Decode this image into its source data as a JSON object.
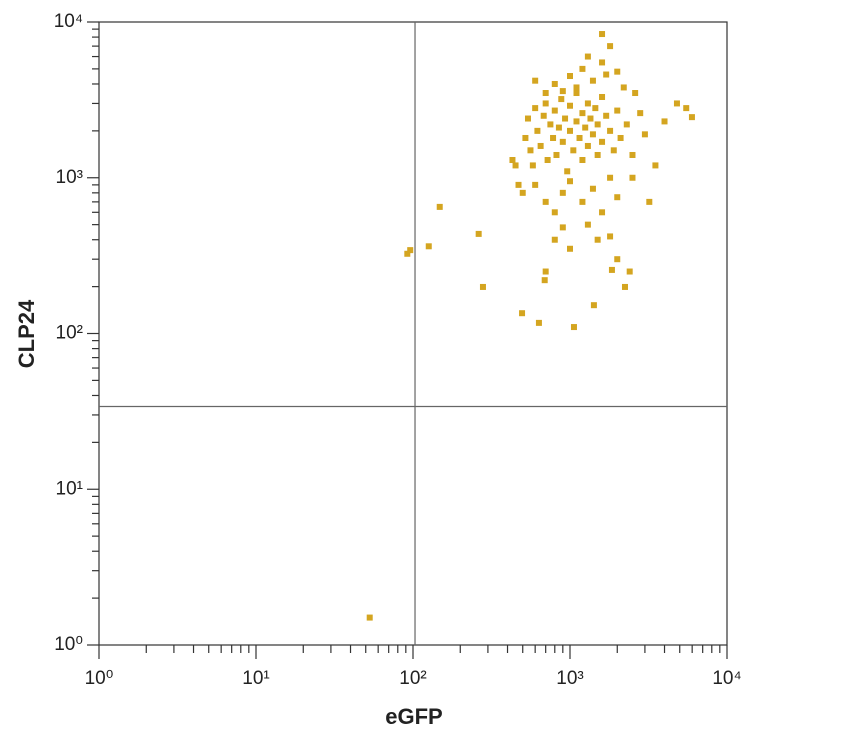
{
  "chart_data": {
    "type": "scatter",
    "x_label": "eGFP",
    "y_label": "CLP24",
    "log_x": true,
    "log_y": true,
    "xlim": [
      1,
      10000
    ],
    "ylim": [
      1,
      10000
    ],
    "xticks": [
      {
        "value": 1,
        "label": "10⁰"
      },
      {
        "value": 10,
        "label": "10¹"
      },
      {
        "value": 100,
        "label": "10²"
      },
      {
        "value": 1000,
        "label": "10³"
      },
      {
        "value": 10000,
        "label": "10⁴"
      }
    ],
    "yticks": [
      {
        "value": 1,
        "label": "10⁰"
      },
      {
        "value": 10,
        "label": "10¹"
      },
      {
        "value": 100,
        "label": "10²"
      },
      {
        "value": 1000,
        "label": "10³"
      },
      {
        "value": 10000,
        "label": "10⁴"
      }
    ],
    "minor_ticks": [
      2,
      3,
      4,
      5,
      6,
      7,
      8,
      9,
      20,
      30,
      40,
      50,
      60,
      70,
      80,
      90,
      200,
      300,
      400,
      500,
      600,
      700,
      800,
      900,
      2000,
      3000,
      4000,
      5000,
      6000,
      7000,
      8000,
      9000
    ],
    "quadrant_x": 103,
    "quadrant_y": 34,
    "color": "#d4a520",
    "x": [
      53,
      92,
      96,
      126,
      148,
      279,
      495,
      634,
      1060,
      1420,
      1600,
      5980,
      2240,
      262,
      1850,
      690,
      520,
      540,
      560,
      580,
      600,
      620,
      650,
      680,
      700,
      720,
      750,
      780,
      800,
      820,
      850,
      880,
      900,
      930,
      960,
      1000,
      1000,
      1050,
      1100,
      1100,
      1150,
      1200,
      1200,
      1250,
      1300,
      1300,
      1350,
      1400,
      1450,
      1500,
      1500,
      1600,
      1600,
      1700,
      1800,
      1900,
      2000,
      2100,
      2300,
      2500,
      2800,
      3000,
      3500,
      4000,
      4800,
      5500,
      450,
      470,
      430,
      500,
      600,
      700,
      800,
      900,
      1000,
      1200,
      1400,
      1600,
      1800,
      2000,
      2500,
      3200,
      600,
      800,
      1000,
      1200,
      1400,
      1600,
      1800,
      2000,
      2200,
      2600,
      1100,
      900,
      700,
      1300,
      1700,
      800,
      1000,
      1500,
      2000,
      2400,
      700,
      1300,
      900,
      1800
    ],
    "y": [
      1.5,
      325,
      343,
      363,
      650,
      199,
      135,
      117,
      110,
      152,
      8370,
      2450,
      199,
      436,
      256,
      220,
      1800,
      2400,
      1500,
      1200,
      2800,
      2000,
      1600,
      2500,
      3000,
      1300,
      2200,
      1800,
      2700,
      1400,
      2100,
      3200,
      1700,
      2400,
      1100,
      2000,
      2900,
      1500,
      2300,
      3500,
      1800,
      2600,
      1300,
      2100,
      3000,
      1600,
      2400,
      1900,
      2800,
      1400,
      2200,
      3300,
      1700,
      2500,
      2000,
      1500,
      2700,
      1800,
      2200,
      1400,
      2600,
      1900,
      1200,
      2300,
      3000,
      2800,
      1200,
      900,
      1300,
      800,
      900,
      700,
      600,
      800,
      950,
      700,
      850,
      600,
      1000,
      750,
      1000,
      700,
      4200,
      4000,
      4500,
      5000,
      4200,
      5500,
      7000,
      4800,
      3800,
      3500,
      3800,
      3600,
      3500,
      6000,
      4600,
      400,
      350,
      400,
      300,
      250,
      250,
      500,
      480,
      420
    ]
  }
}
